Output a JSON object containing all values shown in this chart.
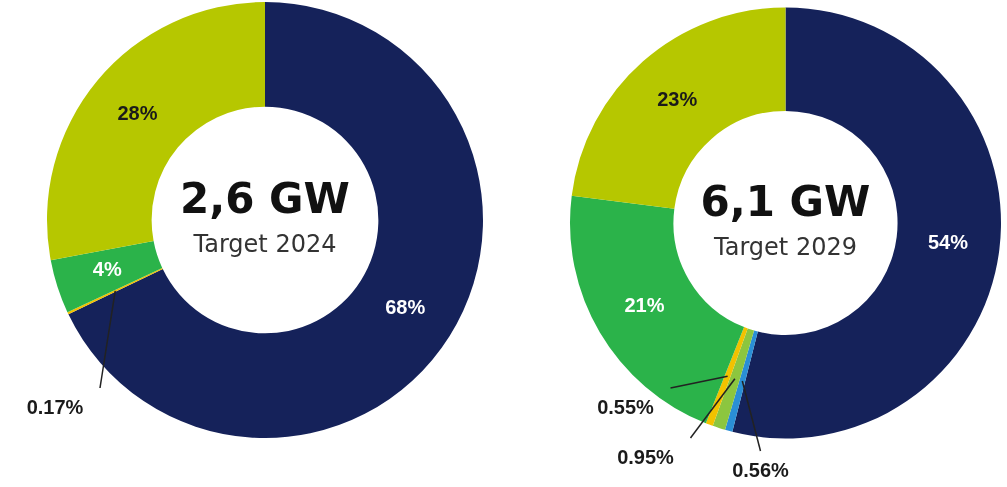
{
  "chart_data": [
    {
      "type": "donut",
      "title": "2,6 GW",
      "subtitle": "Target 2024",
      "categories": [
        null,
        null,
        null,
        null
      ],
      "values": [
        68,
        0.17,
        4,
        28
      ],
      "colors": [
        "#15225a",
        "#f2c200",
        "#2bb34a",
        "#b6c700"
      ],
      "value_labels": [
        "68%",
        "0.17%",
        "4%",
        "28%"
      ]
    },
    {
      "type": "donut",
      "title": "6,1 GW",
      "subtitle": "Target 2029",
      "categories": [
        null,
        null,
        null,
        null,
        null,
        null
      ],
      "values": [
        54,
        0.56,
        0.95,
        0.55,
        21,
        23
      ],
      "colors": [
        "#15225a",
        "#2a8fd6",
        "#8cc63f",
        "#f2c200",
        "#2bb34a",
        "#b6c700"
      ],
      "value_labels": [
        "54%",
        "0.56%",
        "0.95%",
        "0.55%",
        "21%",
        "23%"
      ]
    }
  ]
}
